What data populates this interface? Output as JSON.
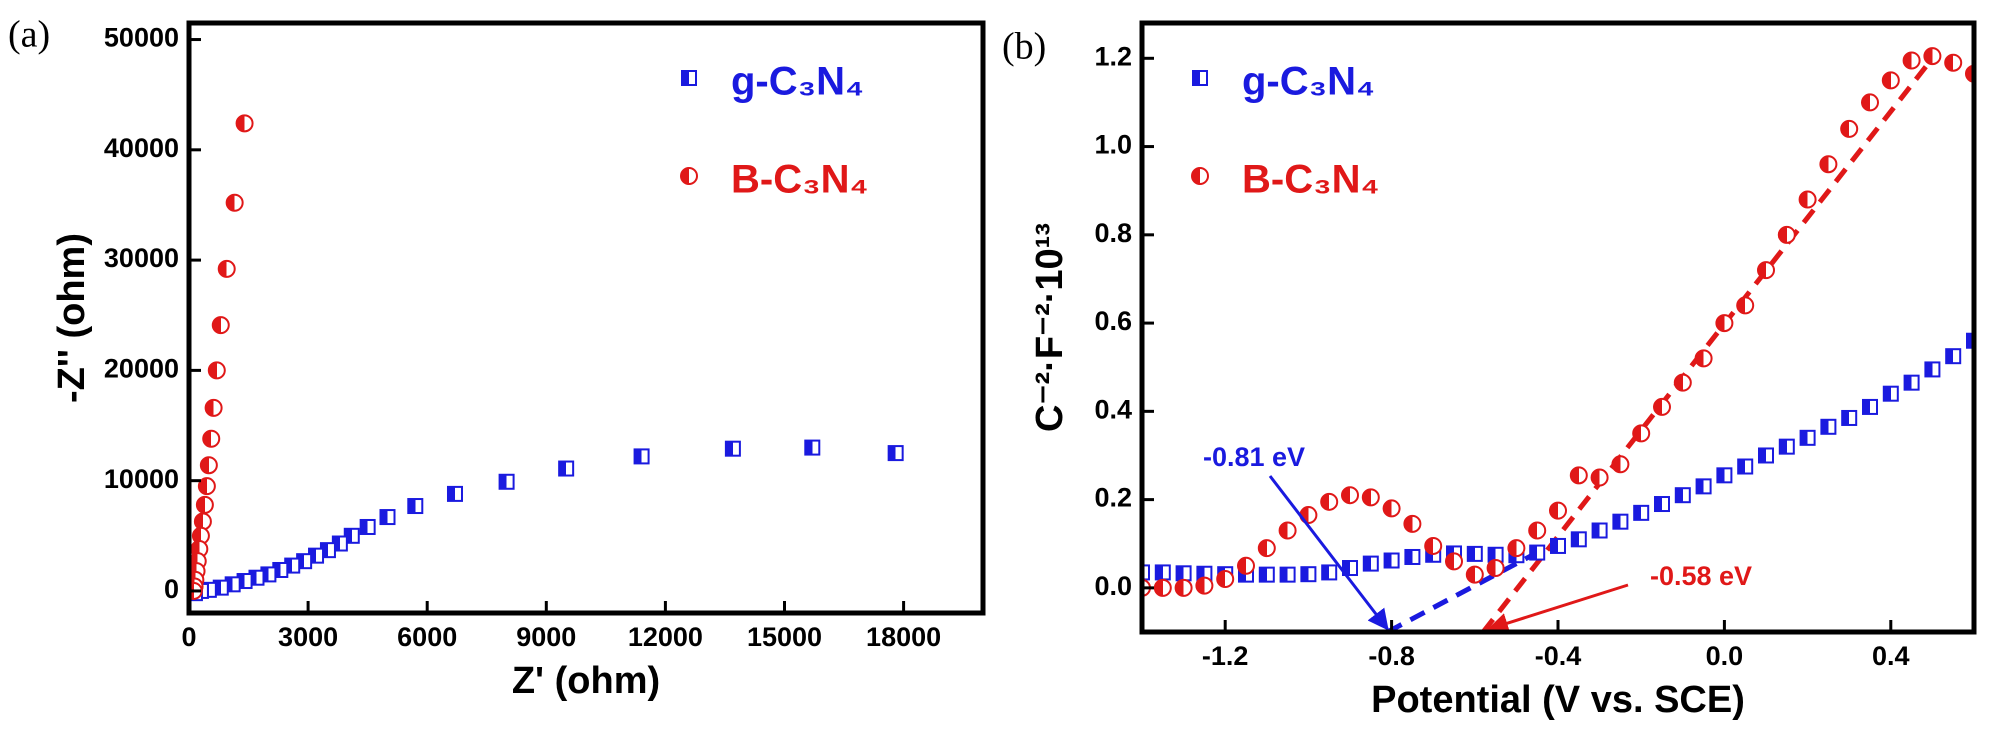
{
  "chart_data": [
    {
      "type": "scatter",
      "panel_label": "(a)",
      "x_label": "Z' (ohm)",
      "y_label": "-Z'' (ohm)",
      "xlim": [
        0,
        20000
      ],
      "ylim": [
        -2000,
        51500
      ],
      "xticks": [
        0,
        3000,
        6000,
        9000,
        12000,
        15000,
        18000
      ],
      "yticks": [
        0,
        10000,
        20000,
        30000,
        40000,
        50000
      ],
      "legend": "upper right",
      "series": [
        {
          "name": "g-C₃N₄",
          "color": "#1a1adf",
          "marker": "square",
          "x": [
            17800,
            15700,
            13700,
            11400,
            9500,
            8000,
            6700,
            5700,
            5000,
            4500,
            4100,
            3800,
            3500,
            3200,
            2900,
            2600,
            2300,
            2000,
            1700,
            1400,
            1100,
            800,
            500,
            300,
            150
          ],
          "values": [
            12500,
            13000,
            12900,
            12200,
            11100,
            9900,
            8800,
            7700,
            6700,
            5800,
            5000,
            4300,
            3700,
            3200,
            2700,
            2300,
            1900,
            1500,
            1200,
            900,
            600,
            300,
            100,
            0,
            -200
          ]
        },
        {
          "name": "B-C₃N₄",
          "color": "#e01818",
          "marker": "circle",
          "x": [
            1400,
            1150,
            950,
            800,
            700,
            620,
            560,
            500,
            450,
            400,
            350,
            300,
            260,
            220,
            190,
            160,
            140,
            120
          ],
          "values": [
            42400,
            35200,
            29200,
            24100,
            20000,
            16600,
            13800,
            11400,
            9500,
            7800,
            6300,
            5000,
            3800,
            2700,
            1800,
            1000,
            400,
            0
          ]
        }
      ]
    },
    {
      "type": "scatter",
      "panel_label": "(b)",
      "x_label": "Potential (V vs. SCE)",
      "y_label": "C⁻²·F⁻²·10¹³",
      "xlim": [
        -1.4,
        0.6
      ],
      "ylim": [
        -0.1,
        1.28
      ],
      "xticks": [
        -1.2,
        -0.8,
        -0.4,
        {
          "value": 0,
          "label": "0.0"
        },
        0.4
      ],
      "yticks": [
        {
          "value": 0,
          "label": "0.0"
        },
        0.2,
        0.4,
        0.6,
        0.8,
        {
          "value": 1,
          "label": "1.0"
        },
        1.2
      ],
      "legend": "upper left",
      "series": [
        {
          "name": "g-C₃N₄",
          "color": "#1a1adf",
          "marker": "square",
          "x": [
            -1.4,
            -1.35,
            -1.3,
            -1.25,
            -1.2,
            -1.15,
            -1.1,
            -1.05,
            -1.0,
            -0.95,
            -0.9,
            -0.85,
            -0.8,
            -0.75,
            -0.7,
            -0.65,
            -0.6,
            -0.55,
            -0.5,
            -0.45,
            -0.4,
            -0.35,
            -0.3,
            -0.25,
            -0.2,
            -0.15,
            -0.1,
            -0.05,
            0.0,
            0.05,
            0.1,
            0.15,
            0.2,
            0.25,
            0.3,
            0.35,
            0.4,
            0.45,
            0.5,
            0.55,
            0.6
          ],
          "values": [
            0.035,
            0.035,
            0.033,
            0.032,
            0.031,
            0.03,
            0.03,
            0.03,
            0.031,
            0.035,
            0.045,
            0.055,
            0.062,
            0.07,
            0.075,
            0.078,
            0.077,
            0.075,
            0.074,
            0.08,
            0.095,
            0.11,
            0.13,
            0.15,
            0.17,
            0.19,
            0.21,
            0.23,
            0.255,
            0.275,
            0.3,
            0.32,
            0.34,
            0.365,
            0.385,
            0.41,
            0.44,
            0.465,
            0.495,
            0.525,
            0.56
          ]
        },
        {
          "name": "B-C₃N₄",
          "color": "#e01818",
          "marker": "circle",
          "x": [
            -1.4,
            -1.35,
            -1.3,
            -1.25,
            -1.2,
            -1.15,
            -1.1,
            -1.05,
            -1.0,
            -0.95,
            -0.9,
            -0.85,
            -0.8,
            -0.75,
            -0.7,
            -0.65,
            -0.6,
            -0.55,
            -0.5,
            -0.45,
            -0.4,
            -0.35,
            -0.3,
            -0.25,
            -0.2,
            -0.15,
            -0.1,
            -0.05,
            0.0,
            0.05,
            0.1,
            0.15,
            0.2,
            0.25,
            0.3,
            0.35,
            0.4,
            0.45,
            0.5,
            0.55,
            0.6
          ],
          "values": [
            0.0,
            0.0,
            0.0,
            0.005,
            0.02,
            0.05,
            0.09,
            0.13,
            0.165,
            0.195,
            0.21,
            0.205,
            0.18,
            0.145,
            0.095,
            0.06,
            0.03,
            0.045,
            0.09,
            0.13,
            0.175,
            0.255,
            0.25,
            0.28,
            0.35,
            0.41,
            0.465,
            0.52,
            0.6,
            0.64,
            0.72,
            0.8,
            0.88,
            0.96,
            1.04,
            1.1,
            1.15,
            1.195,
            1.205,
            1.19,
            1.165
          ]
        }
      ],
      "fits": [
        {
          "color": "#1a1adf",
          "x": [
            -0.81,
            -0.45
          ],
          "y": [
            -0.1,
            0.08
          ]
        },
        {
          "color": "#e01818",
          "x": [
            -0.58,
            0.5
          ],
          "y": [
            -0.1,
            1.2
          ]
        }
      ],
      "annotations": [
        {
          "text": "-0.81 eV",
          "color": "#1a1adf"
        },
        {
          "text": "-0.58 eV",
          "color": "#e01818"
        }
      ]
    }
  ]
}
